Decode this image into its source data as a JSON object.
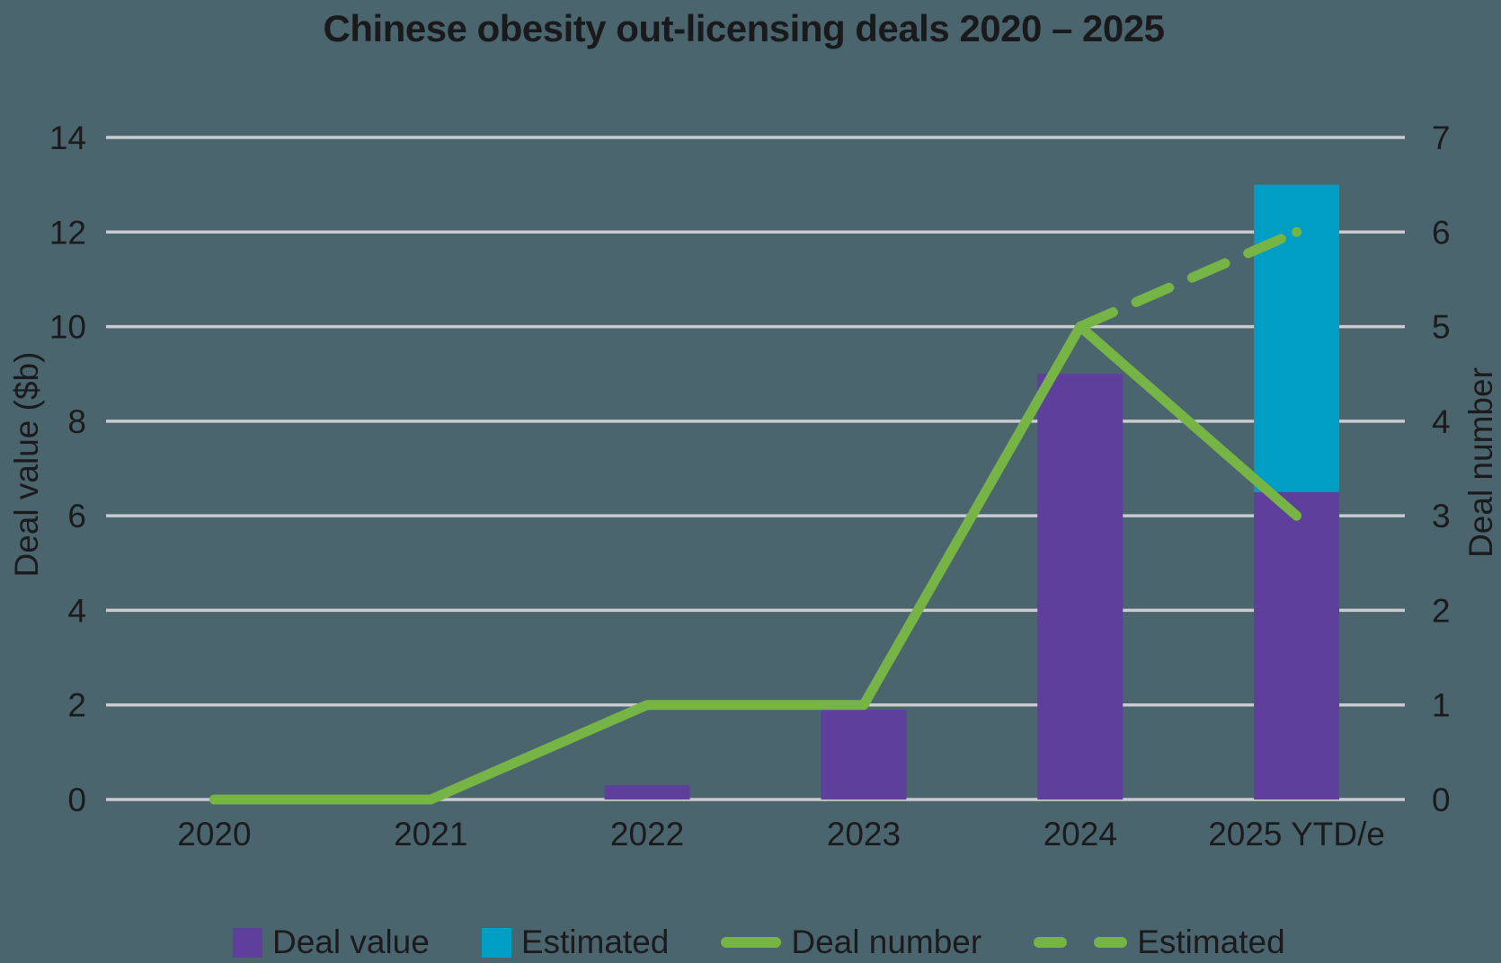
{
  "colors": {
    "background": "#4B656F",
    "gridline": "#C9CBD0",
    "text": "#1B1B1D",
    "deal_value_purple": "#5E3F9C",
    "estimated_cyan": "#009DC4",
    "deal_number_green": "#76B445"
  },
  "chart_data": {
    "type": "combo: stacked bar (left axis) + line (right axis), dual y-axes",
    "title": "Chinese obesity out-licensing deals 2020 – 2025",
    "categories": [
      "2020",
      "2021",
      "2022",
      "2023",
      "2024",
      "2025 YTD/e"
    ],
    "left_axis": {
      "label": "Deal value ($b)",
      "min": 0,
      "max": 14,
      "ticks": [
        0,
        2,
        4,
        6,
        8,
        10,
        12,
        14
      ]
    },
    "right_axis": {
      "label": "Deal number",
      "min": 0,
      "max": 7,
      "ticks": [
        0,
        1,
        2,
        3,
        4,
        5,
        6,
        7
      ]
    },
    "grid": "horizontal gridlines only",
    "series": [
      {
        "name": "Deal value",
        "type": "bar",
        "axis": "left",
        "color": "#5E3F9C",
        "values": [
          0,
          0,
          0.3,
          1.9,
          9,
          6.5
        ]
      },
      {
        "name": "Estimated",
        "type": "bar-stacked-on-deal-value",
        "axis": "left",
        "color": "#009DC4",
        "values": [
          0,
          0,
          0,
          0,
          0,
          6.5
        ]
      },
      {
        "name": "Deal number",
        "type": "line-solid",
        "axis": "right",
        "color": "#76B445",
        "values": [
          0,
          0,
          1,
          1,
          5,
          3
        ]
      },
      {
        "name": "Estimated",
        "type": "line-dashed-with-end-dot",
        "axis": "right",
        "color": "#76B445",
        "values": [
          null,
          null,
          null,
          null,
          5,
          6
        ]
      }
    ],
    "legend_position": "bottom"
  },
  "legend": {
    "items": [
      {
        "label": "Deal value",
        "swatch": "square",
        "color_key": "deal_value_purple"
      },
      {
        "label": "Estimated",
        "swatch": "square",
        "color_key": "estimated_cyan"
      },
      {
        "label": "Deal number",
        "swatch": "solid-line",
        "color_key": "deal_number_green"
      },
      {
        "label": "Estimated",
        "swatch": "dashed-line",
        "color_key": "deal_number_green"
      }
    ]
  }
}
